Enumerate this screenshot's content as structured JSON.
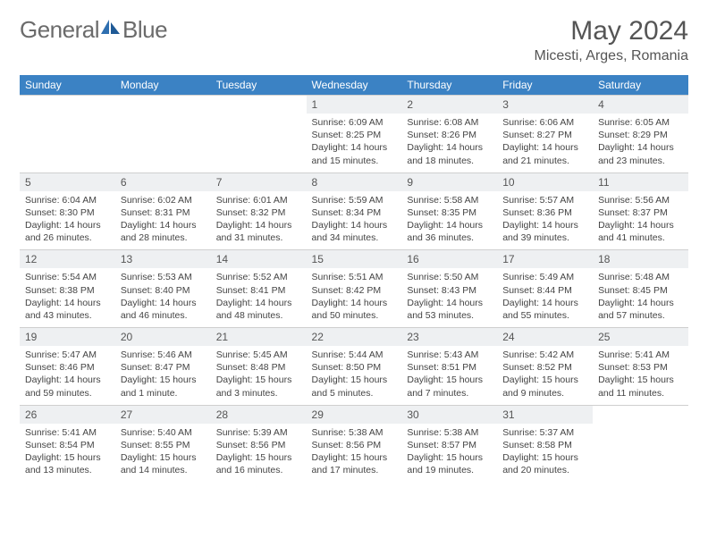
{
  "brand": {
    "name1": "General",
    "name2": "Blue",
    "accent": "#2f6fb0"
  },
  "title": "May 2024",
  "location": "Micesti, Arges, Romania",
  "colors": {
    "header_bg": "#3b82c4",
    "header_text": "#ffffff",
    "daynum_bg": "#eef0f2",
    "border": "#cfcfcf",
    "page_bg": "#ffffff",
    "body_text": "#444444",
    "title_text": "#555555",
    "logo_text": "#6b6b6b"
  },
  "day_headers": [
    "Sunday",
    "Monday",
    "Tuesday",
    "Wednesday",
    "Thursday",
    "Friday",
    "Saturday"
  ],
  "weeks": [
    [
      null,
      null,
      null,
      {
        "n": "1",
        "sr": "Sunrise: 6:09 AM",
        "ss": "Sunset: 8:25 PM",
        "d1": "Daylight: 14 hours",
        "d2": "and 15 minutes."
      },
      {
        "n": "2",
        "sr": "Sunrise: 6:08 AM",
        "ss": "Sunset: 8:26 PM",
        "d1": "Daylight: 14 hours",
        "d2": "and 18 minutes."
      },
      {
        "n": "3",
        "sr": "Sunrise: 6:06 AM",
        "ss": "Sunset: 8:27 PM",
        "d1": "Daylight: 14 hours",
        "d2": "and 21 minutes."
      },
      {
        "n": "4",
        "sr": "Sunrise: 6:05 AM",
        "ss": "Sunset: 8:29 PM",
        "d1": "Daylight: 14 hours",
        "d2": "and 23 minutes."
      }
    ],
    [
      {
        "n": "5",
        "sr": "Sunrise: 6:04 AM",
        "ss": "Sunset: 8:30 PM",
        "d1": "Daylight: 14 hours",
        "d2": "and 26 minutes."
      },
      {
        "n": "6",
        "sr": "Sunrise: 6:02 AM",
        "ss": "Sunset: 8:31 PM",
        "d1": "Daylight: 14 hours",
        "d2": "and 28 minutes."
      },
      {
        "n": "7",
        "sr": "Sunrise: 6:01 AM",
        "ss": "Sunset: 8:32 PM",
        "d1": "Daylight: 14 hours",
        "d2": "and 31 minutes."
      },
      {
        "n": "8",
        "sr": "Sunrise: 5:59 AM",
        "ss": "Sunset: 8:34 PM",
        "d1": "Daylight: 14 hours",
        "d2": "and 34 minutes."
      },
      {
        "n": "9",
        "sr": "Sunrise: 5:58 AM",
        "ss": "Sunset: 8:35 PM",
        "d1": "Daylight: 14 hours",
        "d2": "and 36 minutes."
      },
      {
        "n": "10",
        "sr": "Sunrise: 5:57 AM",
        "ss": "Sunset: 8:36 PM",
        "d1": "Daylight: 14 hours",
        "d2": "and 39 minutes."
      },
      {
        "n": "11",
        "sr": "Sunrise: 5:56 AM",
        "ss": "Sunset: 8:37 PM",
        "d1": "Daylight: 14 hours",
        "d2": "and 41 minutes."
      }
    ],
    [
      {
        "n": "12",
        "sr": "Sunrise: 5:54 AM",
        "ss": "Sunset: 8:38 PM",
        "d1": "Daylight: 14 hours",
        "d2": "and 43 minutes."
      },
      {
        "n": "13",
        "sr": "Sunrise: 5:53 AM",
        "ss": "Sunset: 8:40 PM",
        "d1": "Daylight: 14 hours",
        "d2": "and 46 minutes."
      },
      {
        "n": "14",
        "sr": "Sunrise: 5:52 AM",
        "ss": "Sunset: 8:41 PM",
        "d1": "Daylight: 14 hours",
        "d2": "and 48 minutes."
      },
      {
        "n": "15",
        "sr": "Sunrise: 5:51 AM",
        "ss": "Sunset: 8:42 PM",
        "d1": "Daylight: 14 hours",
        "d2": "and 50 minutes."
      },
      {
        "n": "16",
        "sr": "Sunrise: 5:50 AM",
        "ss": "Sunset: 8:43 PM",
        "d1": "Daylight: 14 hours",
        "d2": "and 53 minutes."
      },
      {
        "n": "17",
        "sr": "Sunrise: 5:49 AM",
        "ss": "Sunset: 8:44 PM",
        "d1": "Daylight: 14 hours",
        "d2": "and 55 minutes."
      },
      {
        "n": "18",
        "sr": "Sunrise: 5:48 AM",
        "ss": "Sunset: 8:45 PM",
        "d1": "Daylight: 14 hours",
        "d2": "and 57 minutes."
      }
    ],
    [
      {
        "n": "19",
        "sr": "Sunrise: 5:47 AM",
        "ss": "Sunset: 8:46 PM",
        "d1": "Daylight: 14 hours",
        "d2": "and 59 minutes."
      },
      {
        "n": "20",
        "sr": "Sunrise: 5:46 AM",
        "ss": "Sunset: 8:47 PM",
        "d1": "Daylight: 15 hours",
        "d2": "and 1 minute."
      },
      {
        "n": "21",
        "sr": "Sunrise: 5:45 AM",
        "ss": "Sunset: 8:48 PM",
        "d1": "Daylight: 15 hours",
        "d2": "and 3 minutes."
      },
      {
        "n": "22",
        "sr": "Sunrise: 5:44 AM",
        "ss": "Sunset: 8:50 PM",
        "d1": "Daylight: 15 hours",
        "d2": "and 5 minutes."
      },
      {
        "n": "23",
        "sr": "Sunrise: 5:43 AM",
        "ss": "Sunset: 8:51 PM",
        "d1": "Daylight: 15 hours",
        "d2": "and 7 minutes."
      },
      {
        "n": "24",
        "sr": "Sunrise: 5:42 AM",
        "ss": "Sunset: 8:52 PM",
        "d1": "Daylight: 15 hours",
        "d2": "and 9 minutes."
      },
      {
        "n": "25",
        "sr": "Sunrise: 5:41 AM",
        "ss": "Sunset: 8:53 PM",
        "d1": "Daylight: 15 hours",
        "d2": "and 11 minutes."
      }
    ],
    [
      {
        "n": "26",
        "sr": "Sunrise: 5:41 AM",
        "ss": "Sunset: 8:54 PM",
        "d1": "Daylight: 15 hours",
        "d2": "and 13 minutes."
      },
      {
        "n": "27",
        "sr": "Sunrise: 5:40 AM",
        "ss": "Sunset: 8:55 PM",
        "d1": "Daylight: 15 hours",
        "d2": "and 14 minutes."
      },
      {
        "n": "28",
        "sr": "Sunrise: 5:39 AM",
        "ss": "Sunset: 8:56 PM",
        "d1": "Daylight: 15 hours",
        "d2": "and 16 minutes."
      },
      {
        "n": "29",
        "sr": "Sunrise: 5:38 AM",
        "ss": "Sunset: 8:56 PM",
        "d1": "Daylight: 15 hours",
        "d2": "and 17 minutes."
      },
      {
        "n": "30",
        "sr": "Sunrise: 5:38 AM",
        "ss": "Sunset: 8:57 PM",
        "d1": "Daylight: 15 hours",
        "d2": "and 19 minutes."
      },
      {
        "n": "31",
        "sr": "Sunrise: 5:37 AM",
        "ss": "Sunset: 8:58 PM",
        "d1": "Daylight: 15 hours",
        "d2": "and 20 minutes."
      },
      null
    ]
  ]
}
